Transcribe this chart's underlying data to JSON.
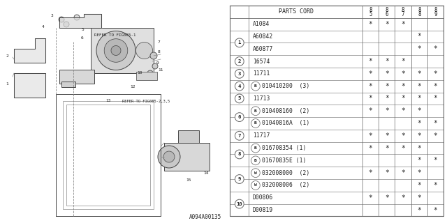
{
  "diagram_ref": "A094A00135",
  "rows": [
    {
      "item": "",
      "part": "A1084",
      "prefix": "",
      "cols": [
        1,
        1,
        1,
        0,
        0
      ]
    },
    {
      "item": "1",
      "part": "A60842",
      "prefix": "",
      "cols": [
        0,
        0,
        0,
        1,
        0
      ]
    },
    {
      "item": "",
      "part": "A60877",
      "prefix": "",
      "cols": [
        0,
        0,
        0,
        1,
        1
      ]
    },
    {
      "item": "2",
      "part": "16574",
      "prefix": "",
      "cols": [
        1,
        1,
        1,
        0,
        0
      ]
    },
    {
      "item": "3",
      "part": "11711",
      "prefix": "",
      "cols": [
        1,
        1,
        1,
        1,
        1
      ]
    },
    {
      "item": "4",
      "part": "010410200  (3)",
      "prefix": "B",
      "cols": [
        1,
        1,
        1,
        1,
        1
      ]
    },
    {
      "item": "5",
      "part": "11713",
      "prefix": "",
      "cols": [
        1,
        1,
        1,
        1,
        1
      ]
    },
    {
      "item": "6",
      "part": "010408160  (2)",
      "prefix": "B",
      "cols": [
        1,
        1,
        1,
        1,
        0
      ]
    },
    {
      "item": "",
      "part": "01040816A  (1)",
      "prefix": "B",
      "cols": [
        0,
        0,
        0,
        1,
        1
      ]
    },
    {
      "item": "7",
      "part": "11717",
      "prefix": "",
      "cols": [
        1,
        1,
        1,
        1,
        1
      ]
    },
    {
      "item": "8",
      "part": "016708354 (1)",
      "prefix": "B",
      "cols": [
        1,
        1,
        1,
        1,
        0
      ]
    },
    {
      "item": "",
      "part": "01670835E (1)",
      "prefix": "B",
      "cols": [
        0,
        0,
        0,
        1,
        1
      ]
    },
    {
      "item": "9",
      "part": "032008000  (2)",
      "prefix": "W",
      "cols": [
        1,
        1,
        1,
        1,
        0
      ]
    },
    {
      "item": "",
      "part": "032008006  (2)",
      "prefix": "W",
      "cols": [
        0,
        0,
        0,
        1,
        1
      ]
    },
    {
      "item": "10",
      "part": "D00806",
      "prefix": "",
      "cols": [
        1,
        1,
        1,
        1,
        0
      ]
    },
    {
      "item": "",
      "part": "D00819",
      "prefix": "",
      "cols": [
        0,
        0,
        0,
        1,
        1
      ]
    }
  ],
  "year_labels": [
    "85",
    "86",
    "87",
    "88",
    "89"
  ],
  "bg_color": "#ffffff",
  "line_color": "#666666",
  "text_color": "#222222",
  "font_size": 5.8,
  "header_font_size": 6.0
}
